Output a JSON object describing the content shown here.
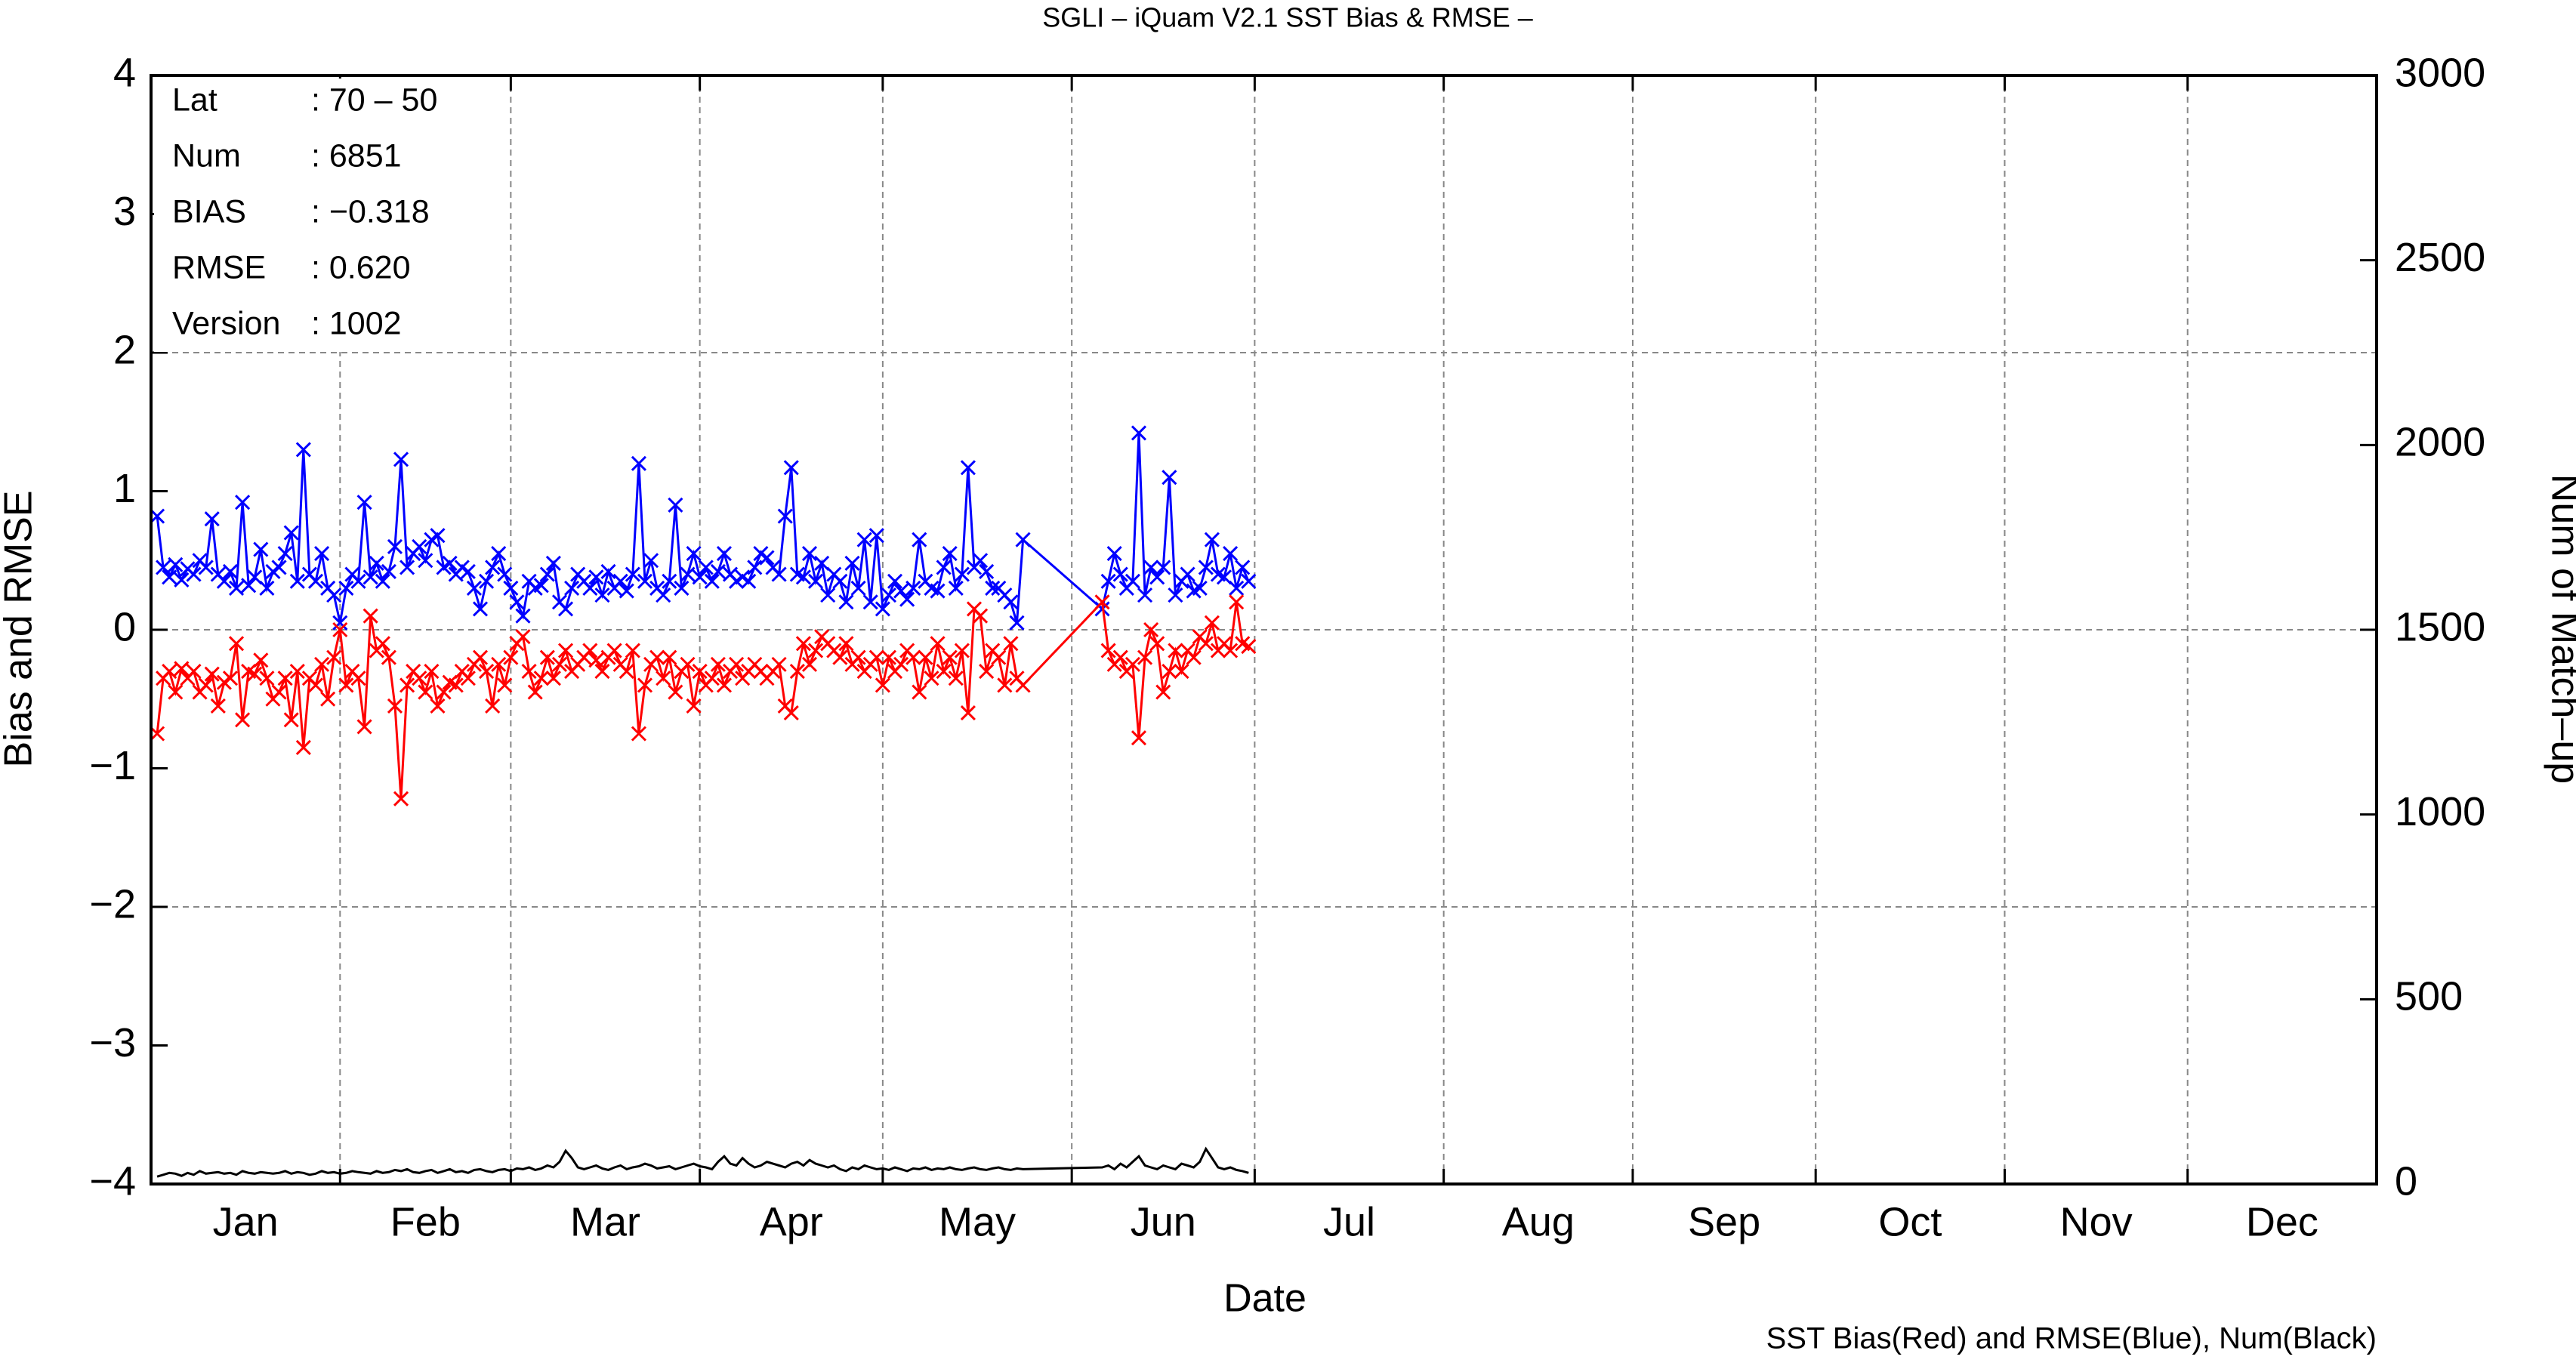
{
  "chart_data": {
    "type": "line",
    "title": "SGLI – iQuam V2.1 SST Bias & RMSE  –",
    "xlabel": "Date",
    "ylabel": "Bias and RMSE",
    "y2label": "Num of Match–up",
    "caption": "SST Bias(Red) and RMSE(Blue), Num(Black)",
    "stats": [
      {
        "label": "Lat",
        "value": ": 70 – 50"
      },
      {
        "label": "Num",
        "value": ": 6851"
      },
      {
        "label": "BIAS",
        "value": ": −0.318"
      },
      {
        "label": "RMSE",
        "value": ": 0.620"
      },
      {
        "label": "Version",
        "value": ": 1002"
      }
    ],
    "xlim": [
      0,
      365
    ],
    "xticks": [
      {
        "value": 15.5,
        "label": "Jan"
      },
      {
        "value": 45,
        "label": "Feb"
      },
      {
        "value": 74.5,
        "label": "Mar"
      },
      {
        "value": 105,
        "label": "Apr"
      },
      {
        "value": 135.5,
        "label": "May"
      },
      {
        "value": 166,
        "label": "Jun"
      },
      {
        "value": 196.5,
        "label": "Jul"
      },
      {
        "value": 227.5,
        "label": "Aug"
      },
      {
        "value": 258,
        "label": "Sep"
      },
      {
        "value": 288.5,
        "label": "Oct"
      },
      {
        "value": 319,
        "label": "Nov"
      },
      {
        "value": 349.5,
        "label": "Dec"
      }
    ],
    "xgrid": [
      31,
      59,
      90,
      120,
      151,
      181,
      212,
      243,
      273,
      304,
      334
    ],
    "ylim": [
      -4,
      4
    ],
    "yticks": [
      {
        "value": -4,
        "label": "−4"
      },
      {
        "value": -3,
        "label": "−3"
      },
      {
        "value": -2,
        "label": "−2"
      },
      {
        "value": -1,
        "label": "−1"
      },
      0,
      1,
      2,
      3,
      4
    ],
    "ygrid": [
      -2,
      0,
      2
    ],
    "y2lim": [
      0,
      3000
    ],
    "y2ticks": [
      0,
      500,
      1000,
      1500,
      2000,
      2500,
      3000
    ],
    "grid": true,
    "x": [
      1,
      2,
      3,
      4,
      5,
      6,
      7,
      8,
      9,
      10,
      11,
      12,
      13,
      14,
      15,
      16,
      17,
      18,
      19,
      20,
      21,
      22,
      23,
      24,
      25,
      26,
      27,
      28,
      29,
      30,
      31,
      32,
      33,
      34,
      35,
      36,
      37,
      38,
      39,
      40,
      41,
      42,
      43,
      44,
      45,
      46,
      47,
      48,
      49,
      50,
      51,
      52,
      53,
      54,
      55,
      56,
      57,
      58,
      59,
      60,
      61,
      62,
      63,
      64,
      65,
      66,
      67,
      68,
      69,
      70,
      71,
      72,
      73,
      74,
      75,
      76,
      77,
      78,
      79,
      80,
      81,
      82,
      83,
      84,
      85,
      86,
      87,
      88,
      89,
      90,
      91,
      92,
      93,
      94,
      95,
      96,
      97,
      98,
      99,
      100,
      101,
      102,
      103,
      104,
      105,
      106,
      107,
      108,
      109,
      110,
      111,
      112,
      113,
      114,
      115,
      116,
      117,
      118,
      119,
      120,
      121,
      122,
      123,
      124,
      125,
      126,
      127,
      128,
      129,
      130,
      131,
      132,
      133,
      134,
      135,
      136,
      137,
      138,
      139,
      140,
      141,
      142,
      143,
      156,
      157,
      158,
      159,
      160,
      161,
      162,
      163,
      164,
      165,
      166,
      167,
      168,
      169,
      170,
      171,
      172,
      173,
      174,
      175,
      176,
      177,
      178,
      179,
      180
    ],
    "series": [
      {
        "color": "#0000ff",
        "marker": "x",
        "values": [
          0.82,
          0.45,
          0.38,
          0.47,
          0.36,
          0.44,
          0.4,
          0.5,
          0.45,
          0.8,
          0.4,
          0.35,
          0.42,
          0.3,
          0.92,
          0.32,
          0.38,
          0.58,
          0.3,
          0.42,
          0.45,
          0.55,
          0.7,
          0.35,
          1.3,
          0.4,
          0.35,
          0.55,
          0.3,
          0.25,
          0.05,
          0.3,
          0.4,
          0.35,
          0.92,
          0.38,
          0.48,
          0.35,
          0.42,
          0.6,
          1.23,
          0.45,
          0.55,
          0.6,
          0.5,
          0.65,
          0.68,
          0.45,
          0.48,
          0.4,
          0.45,
          0.42,
          0.3,
          0.15,
          0.35,
          0.45,
          0.55,
          0.4,
          0.3,
          0.2,
          0.1,
          0.35,
          0.3,
          0.32,
          0.4,
          0.48,
          0.2,
          0.15,
          0.3,
          0.4,
          0.35,
          0.3,
          0.38,
          0.25,
          0.42,
          0.3,
          0.35,
          0.28,
          0.4,
          1.2,
          0.35,
          0.5,
          0.3,
          0.25,
          0.35,
          0.9,
          0.3,
          0.4,
          0.55,
          0.38,
          0.45,
          0.35,
          0.42,
          0.55,
          0.4,
          0.35,
          0.38,
          0.35,
          0.45,
          0.55,
          0.52,
          0.45,
          0.4,
          0.82,
          1.17,
          0.4,
          0.38,
          0.55,
          0.35,
          0.48,
          0.25,
          0.4,
          0.35,
          0.2,
          0.48,
          0.3,
          0.65,
          0.2,
          0.68,
          0.15,
          0.25,
          0.35,
          0.28,
          0.22,
          0.3,
          0.65,
          0.35,
          0.3,
          0.28,
          0.45,
          0.55,
          0.3,
          0.4,
          1.17,
          0.45,
          0.5,
          0.42,
          0.3,
          0.3,
          0.25,
          0.2,
          0.05,
          0.65,
          0.15,
          0.35,
          0.55,
          0.4,
          0.3,
          0.35,
          1.42,
          0.25,
          0.45,
          0.38,
          0.45,
          1.1,
          0.25,
          0.35,
          0.4,
          0.28,
          0.3,
          0.45,
          0.65,
          0.4,
          0.38,
          0.55,
          0.3,
          0.45,
          0.35
        ]
      },
      {
        "color": "#ff0000",
        "marker": "x",
        "values": [
          -0.75,
          -0.35,
          -0.3,
          -0.45,
          -0.28,
          -0.35,
          -0.3,
          -0.45,
          -0.4,
          -0.32,
          -0.55,
          -0.38,
          -0.35,
          -0.1,
          -0.65,
          -0.3,
          -0.32,
          -0.22,
          -0.35,
          -0.5,
          -0.45,
          -0.35,
          -0.65,
          -0.3,
          -0.85,
          -0.35,
          -0.4,
          -0.25,
          -0.5,
          -0.2,
          0.0,
          -0.4,
          -0.3,
          -0.35,
          -0.7,
          0.1,
          -0.15,
          -0.1,
          -0.2,
          -0.55,
          -1.22,
          -0.4,
          -0.3,
          -0.35,
          -0.45,
          -0.3,
          -0.55,
          -0.45,
          -0.38,
          -0.4,
          -0.3,
          -0.35,
          -0.25,
          -0.2,
          -0.3,
          -0.55,
          -0.25,
          -0.4,
          -0.2,
          -0.1,
          -0.05,
          -0.3,
          -0.45,
          -0.35,
          -0.2,
          -0.35,
          -0.25,
          -0.15,
          -0.3,
          -0.25,
          -0.2,
          -0.15,
          -0.22,
          -0.3,
          -0.2,
          -0.15,
          -0.25,
          -0.3,
          -0.15,
          -0.75,
          -0.4,
          -0.25,
          -0.2,
          -0.35,
          -0.2,
          -0.45,
          -0.3,
          -0.25,
          -0.55,
          -0.3,
          -0.4,
          -0.35,
          -0.25,
          -0.4,
          -0.3,
          -0.25,
          -0.35,
          -0.3,
          -0.25,
          -0.3,
          -0.35,
          -0.3,
          -0.25,
          -0.55,
          -0.6,
          -0.3,
          -0.1,
          -0.25,
          -0.15,
          -0.05,
          -0.1,
          -0.15,
          -0.2,
          -0.1,
          -0.25,
          -0.2,
          -0.3,
          -0.25,
          -0.2,
          -0.4,
          -0.2,
          -0.3,
          -0.25,
          -0.15,
          -0.2,
          -0.45,
          -0.2,
          -0.35,
          -0.1,
          -0.3,
          -0.2,
          -0.35,
          -0.15,
          -0.6,
          0.15,
          0.1,
          -0.3,
          -0.15,
          -0.2,
          -0.4,
          -0.1,
          -0.35,
          -0.4,
          0.2,
          -0.15,
          -0.25,
          -0.2,
          -0.3,
          -0.25,
          -0.78,
          -0.2,
          0.0,
          -0.1,
          -0.45,
          -0.3,
          -0.15,
          -0.3,
          -0.15,
          -0.2,
          -0.05,
          -0.1,
          0.05,
          -0.15,
          -0.1,
          -0.15,
          0.2,
          -0.1,
          -0.12
        ]
      },
      {
        "color": "#000000",
        "axis": "y2",
        "values": [
          20,
          25,
          30,
          28,
          22,
          30,
          25,
          35,
          28,
          30,
          32,
          28,
          30,
          25,
          35,
          30,
          28,
          32,
          30,
          28,
          30,
          35,
          28,
          32,
          30,
          25,
          28,
          35,
          30,
          32,
          28,
          30,
          35,
          32,
          30,
          28,
          35,
          30,
          32,
          38,
          35,
          40,
          32,
          30,
          35,
          38,
          30,
          35,
          40,
          32,
          35,
          30,
          38,
          40,
          35,
          32,
          38,
          40,
          35,
          42,
          40,
          45,
          38,
          42,
          50,
          45,
          60,
          90,
          70,
          45,
          40,
          45,
          50,
          42,
          38,
          45,
          50,
          40,
          45,
          48,
          55,
          50,
          42,
          45,
          48,
          40,
          45,
          50,
          55,
          48,
          45,
          40,
          60,
          75,
          55,
          50,
          70,
          55,
          45,
          50,
          60,
          55,
          50,
          45,
          55,
          60,
          50,
          65,
          55,
          50,
          45,
          50,
          40,
          35,
          45,
          40,
          50,
          45,
          40,
          42,
          38,
          45,
          40,
          35,
          42,
          40,
          45,
          38,
          42,
          40,
          45,
          40,
          38,
          42,
          45,
          40,
          38,
          42,
          45,
          40,
          38,
          42,
          40,
          45,
          50,
          40,
          55,
          45,
          60,
          75,
          50,
          45,
          40,
          50,
          45,
          40,
          55,
          50,
          45,
          60,
          95,
          70,
          45,
          40,
          45,
          38,
          35,
          30
        ]
      }
    ]
  }
}
